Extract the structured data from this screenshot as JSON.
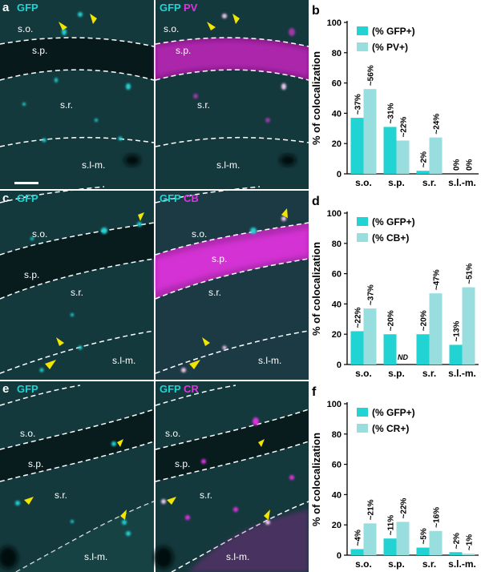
{
  "colors": {
    "cyan": "#22d3d3",
    "light_cyan": "#99dede",
    "magenta": "#e033e0",
    "arrow": "#f2e600",
    "tissue": "#13393d",
    "tissue_dark": "#0a2124"
  },
  "micrographs": [
    {
      "letter": "a",
      "left": {
        "ch1": "GFP",
        "ch2": ""
      },
      "right": {
        "ch1": "GFP",
        "ch2": "PV"
      },
      "layers": [
        "s.o.",
        "s.p.",
        "s.r.",
        "s.l-m."
      ]
    },
    {
      "letter": "c",
      "left": {
        "ch1": "GFP",
        "ch2": ""
      },
      "right": {
        "ch1": "GFP",
        "ch2": "CB"
      },
      "layers": [
        "s.o.",
        "s.p.",
        "s.r.",
        "s.l-m."
      ]
    },
    {
      "letter": "e",
      "left": {
        "ch1": "GFP",
        "ch2": ""
      },
      "right": {
        "ch1": "GFP",
        "ch2": "CR"
      },
      "layers": [
        "s.o.",
        "s.p.",
        "s.r.",
        "s.l-m."
      ]
    }
  ],
  "chart_data": [
    {
      "panel": "b",
      "type": "bar",
      "categories": [
        "s.o.",
        "s.p.",
        "s.r.",
        "s.l.-m."
      ],
      "series": [
        {
          "name": "(% GFP+)",
          "values": [
            37,
            31,
            2,
            0
          ],
          "labels": [
            "~37%",
            "~31%",
            "~2%",
            "0%"
          ]
        },
        {
          "name": "(% PV+)",
          "values": [
            56,
            22,
            24,
            0
          ],
          "labels": [
            "~56%",
            "~22%",
            "~24%",
            "0%"
          ]
        }
      ],
      "ylabel": "% of colocalization",
      "ylim": [
        0,
        100
      ],
      "yticks": [
        0,
        20,
        40,
        60,
        80,
        100
      ],
      "legend": "top-left"
    },
    {
      "panel": "d",
      "type": "bar",
      "categories": [
        "s.o.",
        "s.p.",
        "s.r.",
        "s.l.-m."
      ],
      "series": [
        {
          "name": "(% GFP+)",
          "values": [
            22,
            20,
            20,
            13
          ],
          "labels": [
            "~22%",
            "~20%",
            "~20%",
            "~13%"
          ]
        },
        {
          "name": "(% CB+)",
          "values": [
            37,
            0,
            47,
            51
          ],
          "labels": [
            "~37%",
            "ND",
            "~47%",
            "~51%"
          ]
        }
      ],
      "ylabel": "% of colocalization",
      "ylim": [
        0,
        100
      ],
      "yticks": [
        0,
        20,
        40,
        60,
        80,
        100
      ],
      "legend": "top-left"
    },
    {
      "panel": "f",
      "type": "bar",
      "categories": [
        "s.o.",
        "s.p.",
        "s.r.",
        "s.l.-m."
      ],
      "series": [
        {
          "name": "(% GFP+)",
          "values": [
            4,
            11,
            5,
            2
          ],
          "labels": [
            "~4%",
            "~11%",
            "~5%",
            "~2%"
          ]
        },
        {
          "name": "(% CR+)",
          "values": [
            21,
            22,
            16,
            1
          ],
          "labels": [
            "~21%",
            "~22%",
            "~16%",
            "~1%"
          ]
        }
      ],
      "ylabel": "% of colocalization",
      "ylim": [
        0,
        100
      ],
      "yticks": [
        0,
        20,
        40,
        60,
        80,
        100
      ],
      "legend": "top-left"
    }
  ]
}
